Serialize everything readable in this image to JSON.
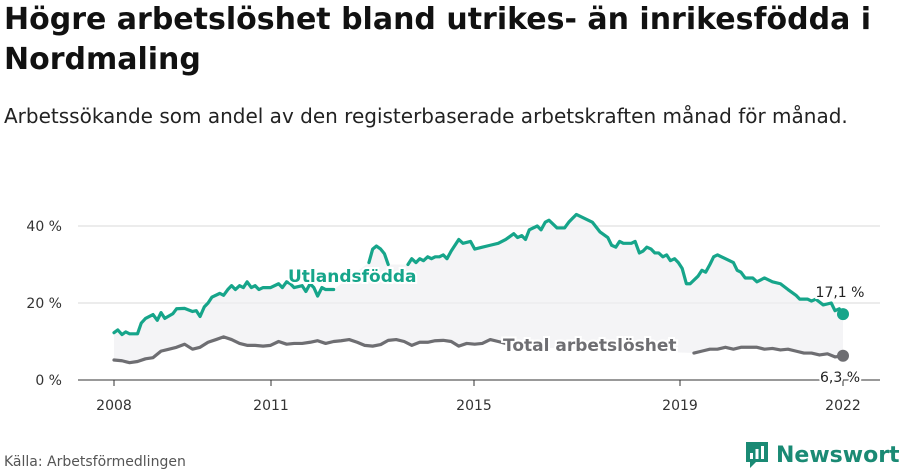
{
  "title": "Högre arbetslöshet bland utrikes- än inrikesfödda i Nordmaling",
  "subtitle": "Arbetssökande som andel av den registerbaserade arbetskraften månad för månad.",
  "source": "Källa: Arbetsförmedlingen",
  "brand": "Newsworthy",
  "chart_data": {
    "type": "line",
    "ylim": [
      0,
      45
    ],
    "xlim": [
      2008,
      2022.6
    ],
    "y_ticks": [
      0,
      20,
      40
    ],
    "y_tick_labels": [
      "0 %",
      "20 %",
      "40 %"
    ],
    "x_ticks": [
      2008,
      2011,
      2015,
      2019,
      2022
    ],
    "x_tick_labels": [
      "2008",
      "2011",
      "2015",
      "2019",
      "2022"
    ],
    "grid": true,
    "series": [
      {
        "name": "Utlandsfödda",
        "color": "#16a58a",
        "end_label": "17,1 %",
        "points": [
          [
            2008.0,
            12.3
          ],
          [
            2008.08,
            13.0
          ],
          [
            2008.17,
            11.8
          ],
          [
            2008.25,
            12.5
          ],
          [
            2008.33,
            12.0
          ],
          [
            2008.5,
            12.0
          ],
          [
            2008.58,
            14.8
          ],
          [
            2008.67,
            16.0
          ],
          [
            2008.83,
            17.0
          ],
          [
            2008.92,
            15.5
          ],
          [
            2009.0,
            17.5
          ],
          [
            2009.08,
            16.0
          ],
          [
            2009.25,
            17.2
          ],
          [
            2009.33,
            18.5
          ],
          [
            2009.5,
            18.6
          ],
          [
            2009.67,
            17.8
          ],
          [
            2009.75,
            18.0
          ],
          [
            2009.83,
            16.5
          ],
          [
            2009.92,
            19.0
          ],
          [
            2010.0,
            20.0
          ],
          [
            2010.08,
            21.5
          ],
          [
            2010.25,
            22.5
          ],
          [
            2010.33,
            22.0
          ],
          [
            2010.42,
            23.5
          ],
          [
            2010.5,
            24.5
          ],
          [
            2010.58,
            23.5
          ],
          [
            2010.67,
            24.5
          ],
          [
            2010.75,
            24.0
          ],
          [
            2010.83,
            25.5
          ],
          [
            2010.92,
            24.0
          ],
          [
            2011.0,
            24.5
          ],
          [
            2011.08,
            23.5
          ],
          [
            2011.17,
            24.0
          ],
          [
            2011.33,
            24.0
          ],
          [
            2011.5,
            25.0
          ],
          [
            2011.58,
            24.0
          ],
          [
            2011.67,
            25.5
          ],
          [
            2011.75,
            25.0
          ],
          [
            2011.83,
            24.0
          ],
          [
            2012.0,
            24.5
          ],
          [
            2012.08,
            23.0
          ],
          [
            2012.17,
            25.0
          ],
          [
            2012.25,
            24.0
          ],
          [
            2012.33,
            21.8
          ],
          [
            2012.42,
            24.0
          ],
          [
            2012.5,
            23.5
          ],
          [
            2012.58,
            23.5
          ],
          [
            2012.67,
            23.5
          ],
          null,
          [
            2013.42,
            30.5
          ],
          [
            2013.5,
            34.0
          ],
          [
            2013.58,
            34.8
          ],
          [
            2013.67,
            34.0
          ],
          [
            2013.75,
            32.8
          ],
          [
            2013.83,
            30.0
          ],
          null,
          [
            2014.25,
            30.0
          ],
          [
            2014.33,
            31.5
          ],
          [
            2014.42,
            30.5
          ],
          [
            2014.5,
            31.5
          ],
          [
            2014.58,
            31.0
          ],
          [
            2014.67,
            32.0
          ],
          [
            2014.75,
            31.5
          ],
          [
            2014.83,
            32.0
          ],
          [
            2014.92,
            32.0
          ],
          [
            2015.0,
            32.5
          ],
          [
            2015.08,
            31.5
          ],
          [
            2015.17,
            33.5
          ],
          [
            2015.25,
            35.0
          ],
          [
            2015.33,
            36.5
          ],
          [
            2015.42,
            35.5
          ],
          [
            2015.58,
            36.0
          ],
          [
            2015.67,
            34.0
          ],
          [
            2015.83,
            34.5
          ],
          [
            2016.0,
            35.0
          ],
          [
            2016.17,
            35.5
          ],
          [
            2016.33,
            36.5
          ],
          [
            2016.5,
            38.0
          ],
          [
            2016.58,
            37.0
          ],
          [
            2016.67,
            37.5
          ],
          [
            2016.75,
            36.5
          ],
          [
            2016.83,
            39.0
          ],
          [
            2017.0,
            40.0
          ],
          [
            2017.08,
            39.0
          ],
          [
            2017.17,
            41.0
          ],
          [
            2017.25,
            41.5
          ],
          [
            2017.42,
            39.5
          ],
          [
            2017.58,
            39.5
          ],
          [
            2017.67,
            41.0
          ],
          [
            2017.75,
            42.0
          ],
          [
            2017.83,
            43.0
          ],
          [
            2018.0,
            42.0
          ],
          [
            2018.17,
            41.0
          ],
          [
            2018.33,
            38.5
          ],
          [
            2018.5,
            37.0
          ],
          [
            2018.58,
            35.0
          ],
          [
            2018.67,
            34.5
          ],
          [
            2018.75,
            36.0
          ],
          [
            2018.83,
            35.5
          ],
          [
            2019.0,
            35.5
          ],
          [
            2019.08,
            36.0
          ],
          [
            2019.17,
            33.0
          ],
          [
            2019.25,
            33.5
          ],
          [
            2019.33,
            34.5
          ],
          [
            2019.42,
            34.0
          ],
          [
            2019.5,
            33.0
          ],
          [
            2019.58,
            33.0
          ],
          [
            2019.67,
            32.0
          ],
          [
            2019.75,
            32.5
          ],
          [
            2019.83,
            31.0
          ],
          [
            2019.92,
            31.5
          ],
          [
            2020.0,
            30.5
          ],
          [
            2020.08,
            29.0
          ],
          [
            2020.17,
            25.0
          ],
          [
            2020.25,
            25.0
          ],
          [
            2020.42,
            27.0
          ],
          [
            2020.5,
            28.5
          ],
          [
            2020.58,
            28.0
          ],
          [
            2020.67,
            30.0
          ],
          [
            2020.75,
            32.0
          ],
          [
            2020.83,
            32.5
          ],
          [
            2021.0,
            31.5
          ],
          [
            2021.17,
            30.5
          ],
          [
            2021.25,
            28.5
          ],
          [
            2021.33,
            28.0
          ],
          [
            2021.42,
            26.5
          ],
          [
            2021.58,
            26.5
          ],
          [
            2021.67,
            25.5
          ],
          [
            2021.75,
            26.0
          ],
          [
            2021.83,
            26.5
          ],
          [
            2022.0,
            25.5
          ],
          [
            2022.17,
            25.0
          ],
          [
            2022.33,
            23.5
          ],
          [
            2022.5,
            22.0
          ],
          [
            2022.58,
            21.0
          ],
          [
            2022.75,
            21.0
          ],
          [
            2022.83,
            20.5
          ],
          [
            2022.92,
            21.0
          ],
          [
            2023.08,
            19.5
          ],
          [
            2023.25,
            20.0
          ],
          [
            2023.33,
            18.0
          ],
          [
            2023.42,
            18.5
          ],
          [
            2023.5,
            17.1
          ]
        ]
      },
      {
        "name": "Total arbetslöshet",
        "color": "#6e6e72",
        "end_label": "6,3 %",
        "points": [
          [
            2008.0,
            5.2
          ],
          [
            2008.17,
            5.0
          ],
          [
            2008.33,
            4.5
          ],
          [
            2008.5,
            4.8
          ],
          [
            2008.67,
            5.5
          ],
          [
            2008.83,
            5.8
          ],
          [
            2009.0,
            7.5
          ],
          [
            2009.17,
            8.0
          ],
          [
            2009.33,
            8.5
          ],
          [
            2009.5,
            9.3
          ],
          [
            2009.67,
            8.0
          ],
          [
            2009.83,
            8.5
          ],
          [
            2010.0,
            9.8
          ],
          [
            2010.17,
            10.5
          ],
          [
            2010.33,
            11.2
          ],
          [
            2010.5,
            10.5
          ],
          [
            2010.67,
            9.5
          ],
          [
            2010.83,
            9.0
          ],
          [
            2011.0,
            9.0
          ],
          [
            2011.17,
            8.8
          ],
          [
            2011.33,
            9.0
          ],
          [
            2011.5,
            10.0
          ],
          [
            2011.67,
            9.3
          ],
          [
            2011.83,
            9.5
          ],
          [
            2012.0,
            9.5
          ],
          [
            2012.17,
            9.8
          ],
          [
            2012.33,
            10.2
          ],
          [
            2012.5,
            9.5
          ],
          [
            2012.67,
            10.0
          ],
          [
            2012.83,
            10.2
          ],
          [
            2013.0,
            10.5
          ],
          [
            2013.17,
            9.8
          ],
          [
            2013.33,
            9.0
          ],
          [
            2013.5,
            8.8
          ],
          [
            2013.67,
            9.2
          ],
          [
            2013.83,
            10.3
          ],
          [
            2014.0,
            10.5
          ],
          [
            2014.17,
            10.0
          ],
          [
            2014.33,
            9.0
          ],
          [
            2014.5,
            9.8
          ],
          [
            2014.67,
            9.8
          ],
          [
            2014.83,
            10.2
          ],
          [
            2015.0,
            10.3
          ],
          [
            2015.17,
            10.0
          ],
          [
            2015.33,
            8.8
          ],
          [
            2015.5,
            9.5
          ],
          [
            2015.67,
            9.3
          ],
          [
            2015.83,
            9.5
          ],
          [
            2016.0,
            10.5
          ],
          [
            2016.17,
            10.0
          ],
          [
            2016.33,
            9.5
          ],
          [
            2016.5,
            9.8
          ],
          [
            2016.67,
            9.0
          ],
          [
            2016.83,
            8.5
          ],
          null,
          [
            2020.33,
            7.0
          ],
          [
            2020.5,
            7.5
          ],
          [
            2020.67,
            8.0
          ],
          [
            2020.83,
            8.0
          ],
          [
            2021.0,
            8.5
          ],
          [
            2021.17,
            8.0
          ],
          [
            2021.33,
            8.5
          ],
          [
            2021.5,
            8.5
          ],
          [
            2021.67,
            8.5
          ],
          [
            2021.83,
            8.0
          ],
          [
            2022.0,
            8.2
          ],
          [
            2022.17,
            7.8
          ],
          [
            2022.33,
            8.0
          ],
          [
            2022.5,
            7.5
          ],
          [
            2022.67,
            7.0
          ],
          [
            2022.83,
            7.0
          ],
          [
            2023.0,
            6.5
          ],
          [
            2023.17,
            6.8
          ],
          [
            2023.33,
            6.0
          ],
          [
            2023.5,
            6.3
          ]
        ]
      }
    ]
  }
}
